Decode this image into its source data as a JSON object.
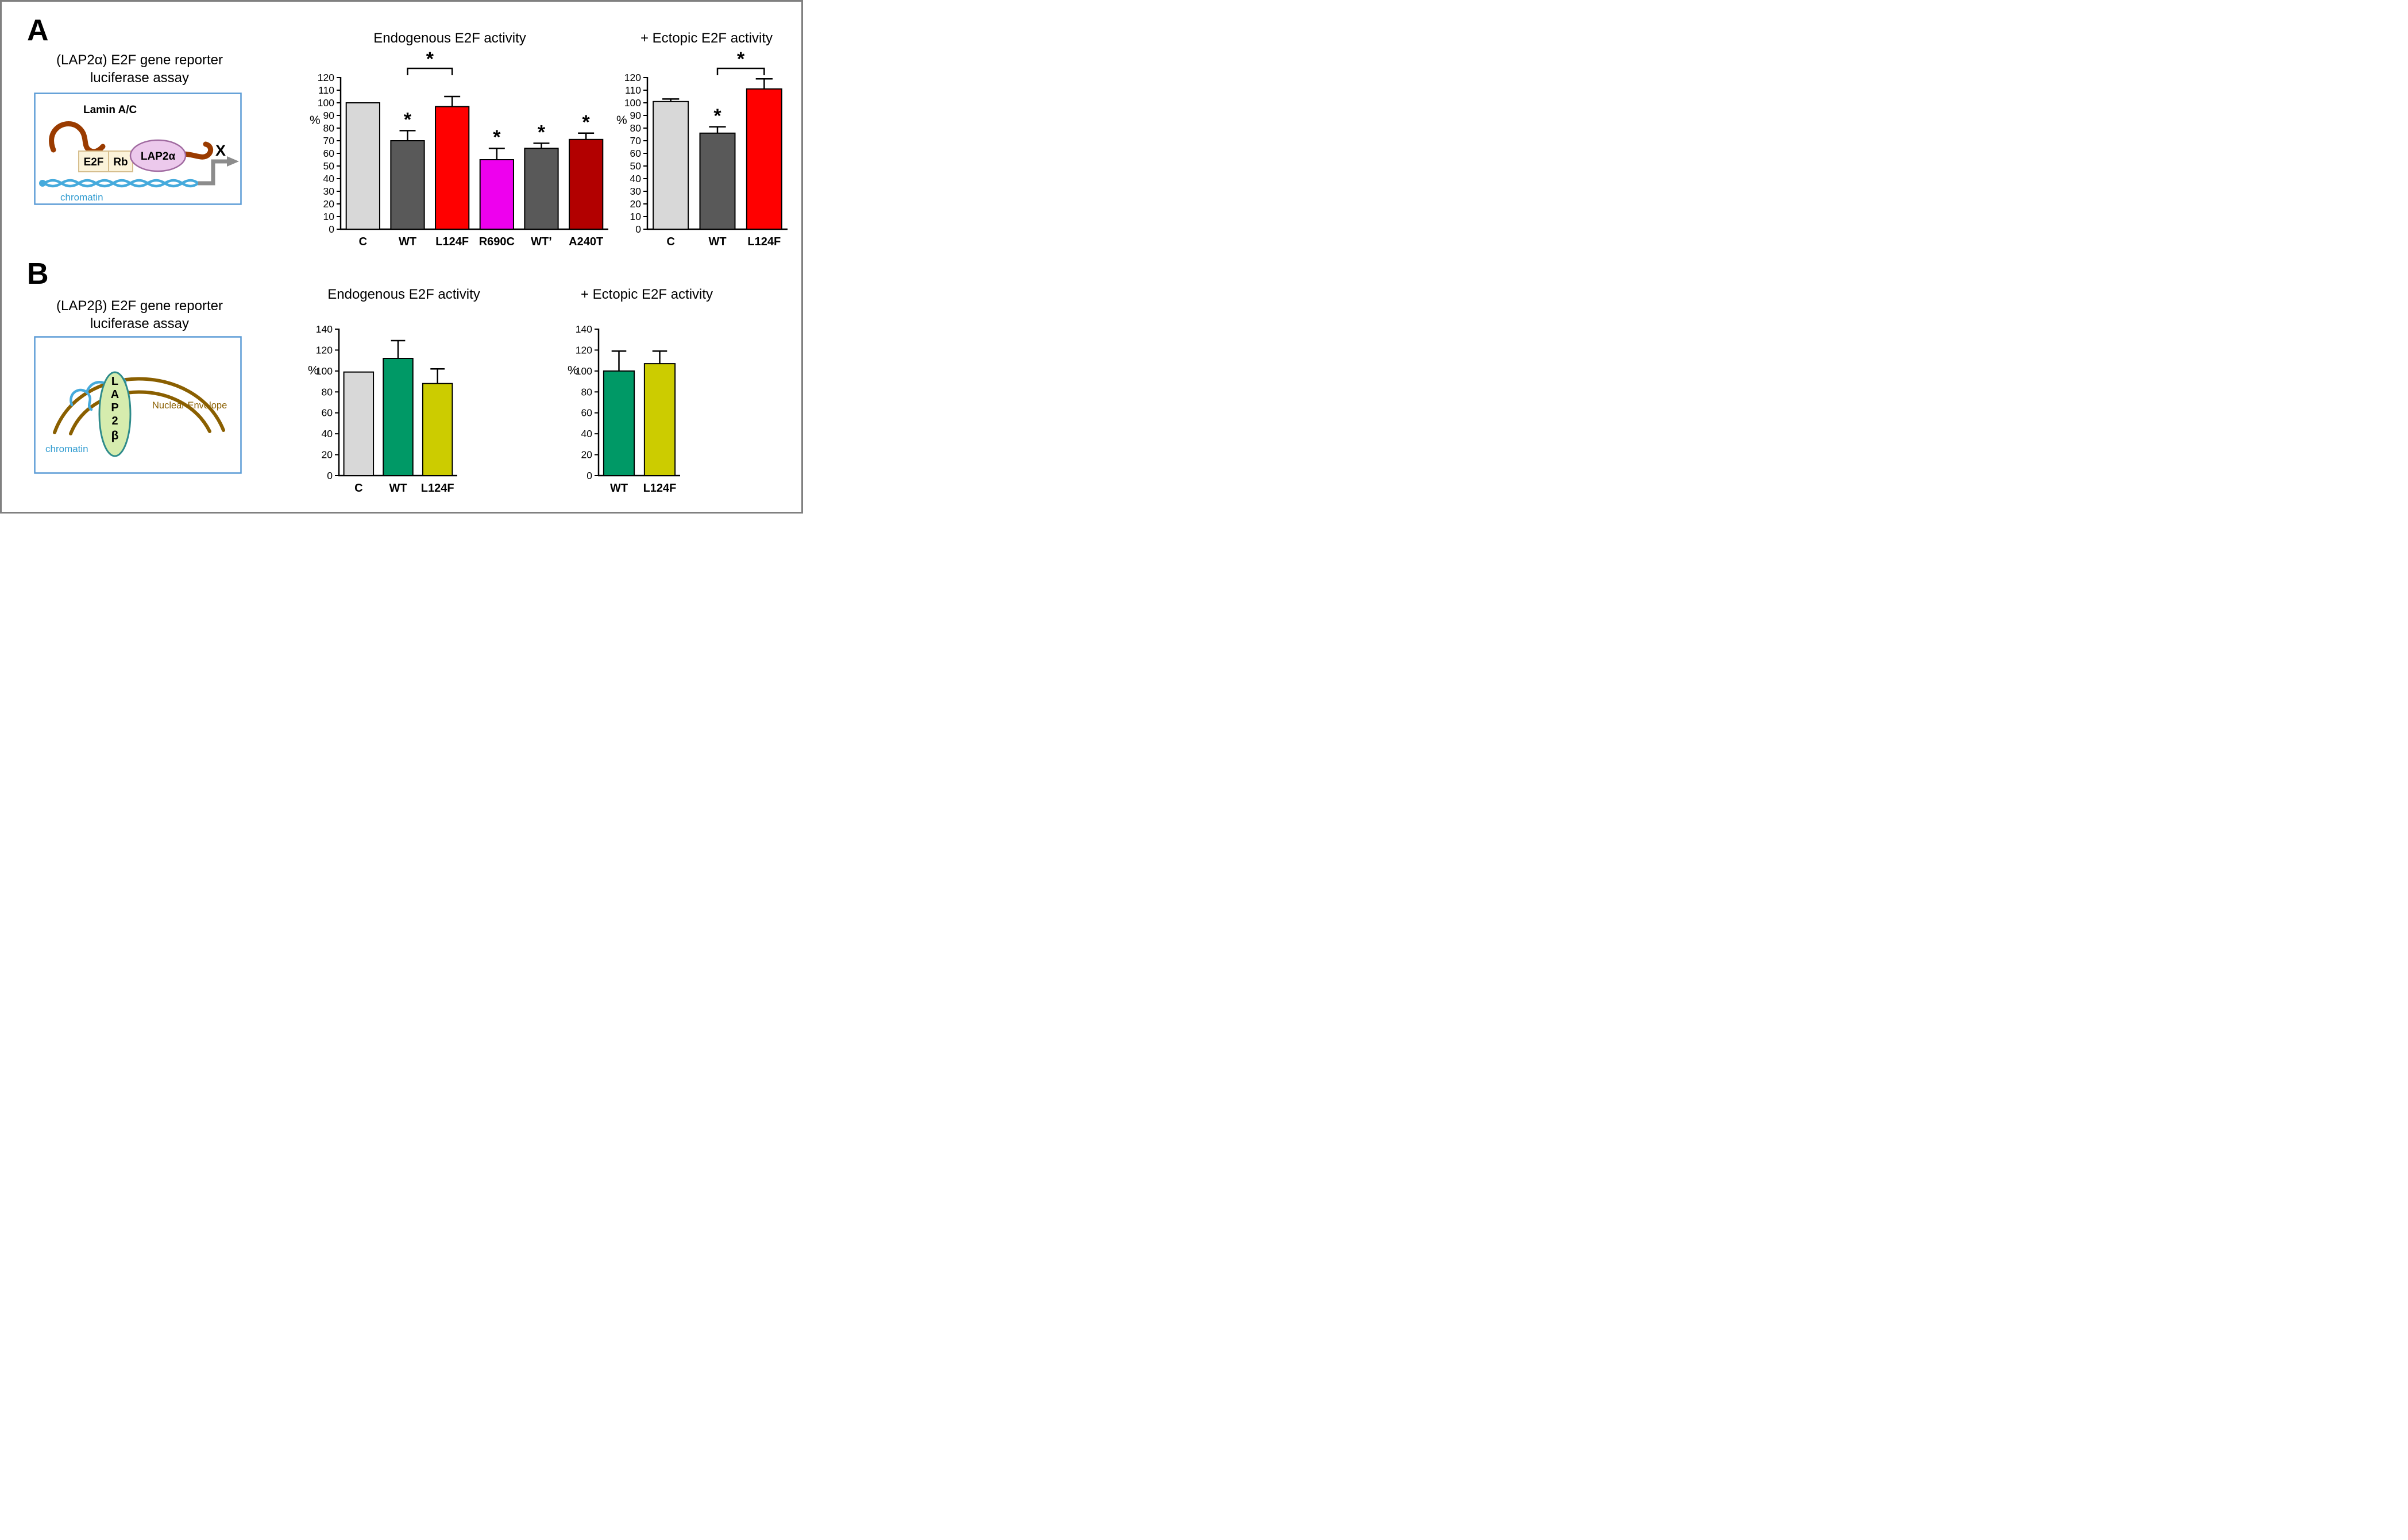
{
  "figure": {
    "panel_a": {
      "label": "A",
      "caption_line1": "(LAP2α) E2F gene reporter",
      "caption_line2": "luciferase assay",
      "schematic": {
        "lamin": "Lamin A/C",
        "e2f": "E2F",
        "rb": "Rb",
        "lap2a": "LAP2α",
        "chromatin": "chromatin",
        "blocked": "X"
      }
    },
    "panel_b": {
      "label": "B",
      "caption_line1": "(LAP2β) E2F gene reporter",
      "caption_line2": "luciferase assay",
      "schematic": {
        "lap2_vertical": "LAP2",
        "beta": "β",
        "chromatin": "chromatin",
        "envelope": "Nuclear Envelope"
      }
    },
    "colors": {
      "figure_border": "#808080",
      "panel_box_border": "#5b9bd5",
      "lamin_brown": "#9a3b00",
      "chromatin_blue": "#45aadc",
      "nuclear_envelope_brown": "#8a5f00",
      "lap2a_fill": "#ecc9ec",
      "lap2b_fill": "#d6ecae",
      "e2f_rb_fill": "#fbf3da",
      "arrow_gray": "#8c8c8c"
    }
  },
  "chart_data": [
    {
      "id": "a-endogenous",
      "type": "bar",
      "title": "Endogenous E2F activity",
      "ylabel": "%",
      "ylim": [
        0,
        120
      ],
      "ytick_step": 10,
      "grid": false,
      "legend": false,
      "categories": [
        "C",
        "WT",
        "L124F",
        "R690C",
        "WT’",
        "A240T"
      ],
      "values": [
        100,
        70,
        97,
        55,
        64,
        71
      ],
      "errors": [
        0,
        8,
        8,
        9,
        4,
        5
      ],
      "bar_colors": [
        "#d8d8d8",
        "#595959",
        "#ff0000",
        "#ee00ee",
        "#595959",
        "#b20000"
      ],
      "label_colors": [
        "#000000",
        "#000000",
        "#ff0000",
        "#ee00ee",
        "#000000",
        "#b20000"
      ],
      "asterisks": [
        false,
        true,
        false,
        true,
        true,
        true
      ],
      "brackets": [
        {
          "from": 1,
          "to": 2,
          "label": "*"
        }
      ]
    },
    {
      "id": "a-ectopic",
      "type": "bar",
      "title": "+ Ectopic E2F activity",
      "ylabel": "%",
      "ylim": [
        0,
        120
      ],
      "ytick_step": 10,
      "grid": false,
      "legend": false,
      "categories": [
        "C",
        "WT",
        "L124F"
      ],
      "values": [
        101,
        76,
        111
      ],
      "errors": [
        2,
        5,
        8
      ],
      "bar_colors": [
        "#d8d8d8",
        "#595959",
        "#ff0000"
      ],
      "label_colors": [
        "#000000",
        "#000000",
        "#ff0000"
      ],
      "asterisks": [
        false,
        true,
        false
      ],
      "brackets": [
        {
          "from": 1,
          "to": 2,
          "label": "*"
        }
      ]
    },
    {
      "id": "b-endogenous",
      "type": "bar",
      "title": "Endogenous E2F activity",
      "ylabel": "%",
      "ylim": [
        0,
        140
      ],
      "ytick_step": 20,
      "grid": false,
      "legend": false,
      "categories": [
        "C",
        "WT",
        "L124F"
      ],
      "values": [
        99,
        112,
        88
      ],
      "errors": [
        0,
        17,
        14
      ],
      "bar_colors": [
        "#d8d8d8",
        "#009966",
        "#cccc00"
      ],
      "label_colors": [
        "#000000",
        "#009966",
        "#c2c200"
      ],
      "asterisks": [
        false,
        false,
        false
      ],
      "brackets": []
    },
    {
      "id": "b-ectopic",
      "type": "bar",
      "title": "+ Ectopic E2F activity",
      "ylabel": "%",
      "ylim": [
        0,
        140
      ],
      "ytick_step": 20,
      "grid": false,
      "legend": false,
      "categories": [
        "WT",
        "L124F"
      ],
      "values": [
        100,
        107
      ],
      "errors": [
        19,
        12
      ],
      "bar_colors": [
        "#009966",
        "#cccc00"
      ],
      "label_colors": [
        "#009966",
        "#c2c200"
      ],
      "asterisks": [
        false,
        false
      ],
      "brackets": []
    }
  ]
}
